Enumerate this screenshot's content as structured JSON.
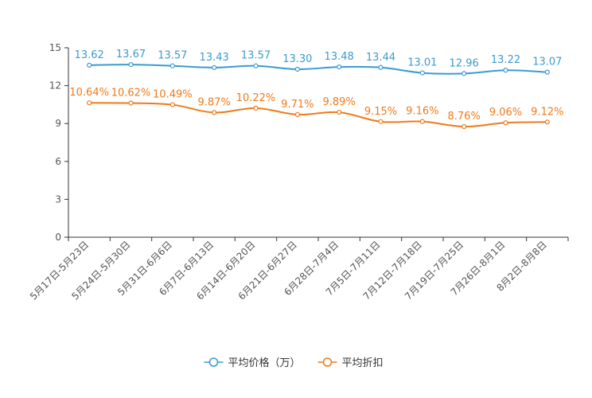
{
  "chart_data": {
    "type": "line",
    "title": "",
    "xlabel": "",
    "ylabel": "",
    "ylim": [
      0,
      15
    ],
    "yticks": [
      0,
      3,
      6,
      9,
      12,
      15
    ],
    "grid": false,
    "legend_position": "bottom-center",
    "categories": [
      "5月17日-5月23日",
      "5月24日-5月30日",
      "5月31日-6月6日",
      "6月7日-6月13日",
      "6月14日-6月20日",
      "6月21日-6月27日",
      "6月28日-7月4日",
      "7月5日-7月11日",
      "7月12日-7月18日",
      "7月19日-7月25日",
      "7月26日-8月1日",
      "8月2日-8月8日"
    ],
    "series": [
      {
        "name": "平均价格（万）",
        "color": "#3a9bd0",
        "values": [
          13.62,
          13.67,
          13.57,
          13.43,
          13.57,
          13.3,
          13.48,
          13.44,
          13.01,
          12.96,
          13.22,
          13.07
        ],
        "labels": [
          "13.62",
          "13.67",
          "13.57",
          "13.43",
          "13.57",
          "13.30",
          "13.48",
          "13.44",
          "13.01",
          "12.96",
          "13.22",
          "13.07"
        ]
      },
      {
        "name": "平均折扣",
        "color": "#f07a1a",
        "values": [
          10.64,
          10.62,
          10.49,
          9.87,
          10.22,
          9.71,
          9.89,
          9.15,
          9.16,
          8.76,
          9.06,
          9.12
        ],
        "labels": [
          "10.64%",
          "10.62%",
          "10.49%",
          "9.87%",
          "10.22%",
          "9.71%",
          "9.89%",
          "9.15%",
          "9.16%",
          "8.76%",
          "9.06%",
          "9.12%"
        ]
      }
    ]
  }
}
